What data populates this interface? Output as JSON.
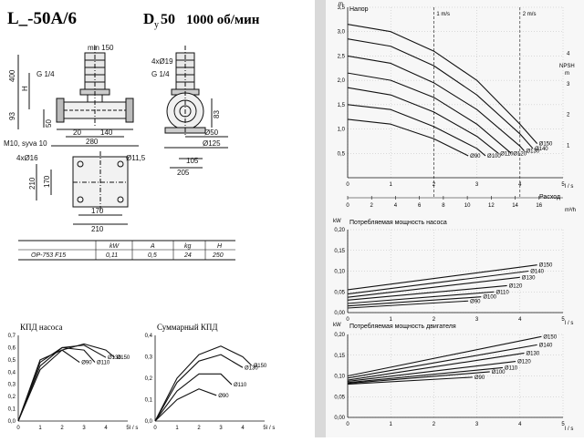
{
  "header": {
    "model": "L_-50A/6",
    "dn_letter": "D",
    "dn_sub": "y",
    "dn_value": "50",
    "speed": "1000 об/мин"
  },
  "drawing": {
    "dims": [
      "min 150",
      "400",
      "H",
      "G 1/4",
      "4xØ19",
      "G 1/4",
      "93",
      "50",
      "20",
      "140",
      "280",
      "83",
      "Ø50",
      "Ø125",
      "M10, syva 10",
      "4xØ16",
      "Ø11,5",
      "105",
      "205",
      "210",
      "170",
      "210",
      "170"
    ]
  },
  "spec_table": {
    "headers": [
      "kW",
      "A",
      "kg",
      "H"
    ],
    "row": [
      "OP-753 F15",
      "0,11",
      "0,5",
      "24",
      "250"
    ]
  },
  "icons": [
    "pump-front-view-icon",
    "pump-side-view-icon",
    "pump-base-plan-icon"
  ],
  "chart_data": [
    {
      "type": "line",
      "title": "Напор",
      "ylabel": "m",
      "xlabel": "l / s",
      "xlabel2": "m³/h",
      "x_name": "Расход",
      "xlim": [
        0,
        5
      ],
      "ylim": [
        0,
        3.5
      ],
      "x_ticks": [
        0,
        1,
        2,
        3,
        4,
        5
      ],
      "y_ticks": [
        0.5,
        1,
        1.5,
        2,
        2.5,
        3,
        3.5
      ],
      "x2_ticks": [
        0,
        2,
        4,
        6,
        8,
        10,
        12,
        14,
        16
      ],
      "velocity_marks": [
        {
          "label": "1 m/s",
          "x": 2.0
        },
        {
          "label": "2 m/s",
          "x": 4.0
        }
      ],
      "npsh": {
        "label": "NPSH",
        "unit": "m",
        "ticks": [
          1,
          2,
          3,
          4
        ]
      },
      "series": [
        {
          "name": "Ø150",
          "x": [
            0,
            1,
            2,
            3,
            4,
            4.4
          ],
          "y": [
            3.15,
            3.0,
            2.6,
            2.0,
            1.1,
            0.7
          ]
        },
        {
          "name": "Ø140",
          "x": [
            0,
            1,
            2,
            3,
            4,
            4.3
          ],
          "y": [
            2.85,
            2.7,
            2.3,
            1.7,
            0.9,
            0.6
          ]
        },
        {
          "name": "Ø130",
          "x": [
            0,
            1,
            2,
            3,
            4,
            4.1
          ],
          "y": [
            2.5,
            2.35,
            1.95,
            1.4,
            0.65,
            0.55
          ]
        },
        {
          "name": "Ø120",
          "x": [
            0,
            1,
            2,
            3,
            3.8
          ],
          "y": [
            2.15,
            2.0,
            1.65,
            1.1,
            0.5
          ]
        },
        {
          "name": "Ø110",
          "x": [
            0,
            1,
            2,
            3,
            3.5
          ],
          "y": [
            1.85,
            1.7,
            1.35,
            0.85,
            0.5
          ]
        },
        {
          "name": "Ø100",
          "x": [
            0,
            1,
            2,
            3,
            3.2
          ],
          "y": [
            1.5,
            1.4,
            1.05,
            0.6,
            0.45
          ]
        },
        {
          "name": "Ø90",
          "x": [
            0,
            1,
            2,
            2.8
          ],
          "y": [
            1.2,
            1.1,
            0.8,
            0.45
          ]
        }
      ]
    },
    {
      "type": "line",
      "title": "Потребляемая мощность насоса",
      "ylabel": "kW",
      "xlabel": "l / s",
      "xlim": [
        0,
        5
      ],
      "ylim": [
        0,
        0.2
      ],
      "x_ticks": [
        0,
        1,
        2,
        3,
        4,
        5
      ],
      "y_ticks": [
        0,
        0.05,
        0.1,
        0.15,
        0.2
      ],
      "series": [
        {
          "name": "Ø150",
          "x": [
            0,
            4.4
          ],
          "y": [
            0.055,
            0.115
          ]
        },
        {
          "name": "Ø140",
          "x": [
            0,
            4.2
          ],
          "y": [
            0.045,
            0.1
          ]
        },
        {
          "name": "Ø130",
          "x": [
            0,
            4.0
          ],
          "y": [
            0.037,
            0.085
          ]
        },
        {
          "name": "Ø120",
          "x": [
            0,
            3.7
          ],
          "y": [
            0.03,
            0.065
          ]
        },
        {
          "name": "Ø110",
          "x": [
            0,
            3.4
          ],
          "y": [
            0.022,
            0.05
          ]
        },
        {
          "name": "Ø100",
          "x": [
            0,
            3.1
          ],
          "y": [
            0.016,
            0.038
          ]
        },
        {
          "name": "Ø90",
          "x": [
            0,
            2.8
          ],
          "y": [
            0.011,
            0.028
          ]
        }
      ]
    },
    {
      "type": "line",
      "title": "Потребляемая мощность двигателя",
      "ylabel": "kW",
      "xlabel": "l / s",
      "xlim": [
        0,
        5
      ],
      "ylim": [
        0,
        0.2
      ],
      "x_ticks": [
        0,
        1,
        2,
        3,
        4,
        5
      ],
      "y_ticks": [
        0,
        0.05,
        0.1,
        0.15,
        0.2
      ],
      "series": [
        {
          "name": "Ø150",
          "x": [
            0,
            4.5
          ],
          "y": [
            0.1,
            0.195
          ]
        },
        {
          "name": "Ø140",
          "x": [
            0,
            4.4
          ],
          "y": [
            0.095,
            0.175
          ]
        },
        {
          "name": "Ø130",
          "x": [
            0,
            4.1
          ],
          "y": [
            0.09,
            0.155
          ]
        },
        {
          "name": "Ø120",
          "x": [
            0,
            3.9
          ],
          "y": [
            0.087,
            0.135
          ]
        },
        {
          "name": "Ø110",
          "x": [
            0,
            3.6
          ],
          "y": [
            0.084,
            0.12
          ]
        },
        {
          "name": "Ø100",
          "x": [
            0,
            3.3
          ],
          "y": [
            0.082,
            0.11
          ]
        },
        {
          "name": "Ø90",
          "x": [
            0,
            2.9
          ],
          "y": [
            0.08,
            0.097
          ]
        }
      ]
    },
    {
      "type": "line",
      "title": "КПД насоса",
      "xlabel": "l / s",
      "xlim": [
        0,
        5
      ],
      "ylim": [
        0,
        0.7
      ],
      "x_ticks": [
        0,
        1,
        2,
        3,
        4,
        5
      ],
      "y_ticks": [
        0,
        0.1,
        0.2,
        0.3,
        0.4,
        0.5,
        0.6,
        0.7
      ],
      "series": [
        {
          "name": "Ø150",
          "x": [
            0,
            1,
            2,
            3,
            4,
            4.4
          ],
          "y": [
            0,
            0.42,
            0.58,
            0.63,
            0.58,
            0.52
          ]
        },
        {
          "name": "Ø130",
          "x": [
            0,
            1,
            2,
            3,
            4
          ],
          "y": [
            0,
            0.45,
            0.6,
            0.62,
            0.52
          ]
        },
        {
          "name": "Ø110",
          "x": [
            0,
            1,
            2,
            3,
            3.5
          ],
          "y": [
            0,
            0.48,
            0.6,
            0.58,
            0.48
          ]
        },
        {
          "name": "Ø90",
          "x": [
            0,
            1,
            2,
            2.8
          ],
          "y": [
            0,
            0.5,
            0.58,
            0.48
          ]
        }
      ]
    },
    {
      "type": "line",
      "title": "Суммарный КПД",
      "xlabel": "l / s",
      "xlim": [
        0,
        5
      ],
      "ylim": [
        0,
        0.4
      ],
      "x_ticks": [
        0,
        1,
        2,
        3,
        4,
        5
      ],
      "y_ticks": [
        0,
        0.1,
        0.2,
        0.3,
        0.4
      ],
      "series": [
        {
          "name": "Ø150",
          "x": [
            0,
            1,
            2,
            3,
            4,
            4.4
          ],
          "y": [
            0,
            0.2,
            0.31,
            0.35,
            0.3,
            0.26
          ]
        },
        {
          "name": "Ø130",
          "x": [
            0,
            1,
            2,
            3,
            4
          ],
          "y": [
            0,
            0.18,
            0.28,
            0.31,
            0.25
          ]
        },
        {
          "name": "Ø110",
          "x": [
            0,
            1,
            2,
            3,
            3.5
          ],
          "y": [
            0,
            0.14,
            0.22,
            0.22,
            0.17
          ]
        },
        {
          "name": "Ø90",
          "x": [
            0,
            1,
            2,
            2.8
          ],
          "y": [
            0,
            0.1,
            0.15,
            0.12
          ]
        }
      ]
    }
  ]
}
